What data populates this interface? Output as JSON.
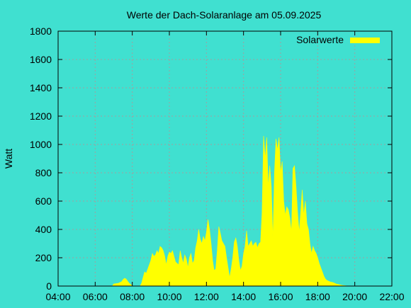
{
  "chart_data": {
    "type": "area",
    "title": "Werte der Dach-Solaranlage am 05.09.2025",
    "xlabel": "",
    "ylabel": "Watt",
    "xlim": [
      "04:00",
      "22:00"
    ],
    "ylim": [
      0,
      1800
    ],
    "x_ticks": [
      "04:00",
      "06:00",
      "08:00",
      "10:00",
      "12:00",
      "14:00",
      "16:00",
      "18:00",
      "20:00",
      "22:00"
    ],
    "y_ticks": [
      0,
      200,
      400,
      600,
      800,
      1000,
      1200,
      1400,
      1600,
      1800
    ],
    "grid": true,
    "legend_position": "top-right",
    "series": [
      {
        "name": "Solarwerte",
        "color": "#ffff00",
        "points": [
          [
            "06:55",
            0
          ],
          [
            "07:00",
            15
          ],
          [
            "07:15",
            20
          ],
          [
            "07:25",
            30
          ],
          [
            "07:30",
            45
          ],
          [
            "07:35",
            55
          ],
          [
            "07:40",
            50
          ],
          [
            "07:45",
            35
          ],
          [
            "07:50",
            20
          ],
          [
            "07:55",
            10
          ],
          [
            "08:00",
            3
          ],
          [
            "08:05",
            0
          ],
          [
            "08:25",
            0
          ],
          [
            "08:30",
            20
          ],
          [
            "08:35",
            60
          ],
          [
            "08:40",
            100
          ],
          [
            "08:45",
            90
          ],
          [
            "08:50",
            120
          ],
          [
            "09:00",
            180
          ],
          [
            "09:05",
            230
          ],
          [
            "09:10",
            210
          ],
          [
            "09:15",
            220
          ],
          [
            "09:20",
            250
          ],
          [
            "09:25",
            230
          ],
          [
            "09:30",
            280
          ],
          [
            "09:35",
            270
          ],
          [
            "09:40",
            250
          ],
          [
            "09:45",
            210
          ],
          [
            "09:50",
            150
          ],
          [
            "09:55",
            210
          ],
          [
            "10:00",
            240
          ],
          [
            "10:05",
            230
          ],
          [
            "10:10",
            250
          ],
          [
            "10:15",
            210
          ],
          [
            "10:20",
            170
          ],
          [
            "10:25",
            160
          ],
          [
            "10:30",
            150
          ],
          [
            "10:35",
            250
          ],
          [
            "10:40",
            200
          ],
          [
            "10:45",
            160
          ],
          [
            "10:50",
            220
          ],
          [
            "10:55",
            190
          ],
          [
            "11:00",
            130
          ],
          [
            "11:05",
            200
          ],
          [
            "11:10",
            230
          ],
          [
            "11:15",
            160
          ],
          [
            "11:20",
            180
          ],
          [
            "11:25",
            270
          ],
          [
            "11:30",
            320
          ],
          [
            "11:35",
            400
          ],
          [
            "11:40",
            330
          ],
          [
            "11:45",
            300
          ],
          [
            "11:50",
            350
          ],
          [
            "11:55",
            320
          ],
          [
            "12:00",
            380
          ],
          [
            "12:05",
            470
          ],
          [
            "12:10",
            400
          ],
          [
            "12:15",
            300
          ],
          [
            "12:20",
            180
          ],
          [
            "12:25",
            110
          ],
          [
            "12:30",
            120
          ],
          [
            "12:35",
            250
          ],
          [
            "12:40",
            420
          ],
          [
            "12:45",
            370
          ],
          [
            "12:50",
            320
          ],
          [
            "12:55",
            300
          ],
          [
            "13:00",
            280
          ],
          [
            "13:05",
            200
          ],
          [
            "13:10",
            130
          ],
          [
            "13:15",
            60
          ],
          [
            "13:20",
            120
          ],
          [
            "13:25",
            200
          ],
          [
            "13:30",
            310
          ],
          [
            "13:35",
            340
          ],
          [
            "13:40",
            280
          ],
          [
            "13:45",
            180
          ],
          [
            "13:50",
            110
          ],
          [
            "13:55",
            140
          ],
          [
            "14:00",
            230
          ],
          [
            "14:05",
            280
          ],
          [
            "14:10",
            390
          ],
          [
            "14:15",
            280
          ],
          [
            "14:20",
            300
          ],
          [
            "14:25",
            320
          ],
          [
            "14:30",
            280
          ],
          [
            "14:35",
            300
          ],
          [
            "14:40",
            310
          ],
          [
            "14:45",
            270
          ],
          [
            "14:50",
            300
          ],
          [
            "14:55",
            310
          ],
          [
            "15:00",
            520
          ],
          [
            "15:05",
            1060
          ],
          [
            "15:10",
            900
          ],
          [
            "15:15",
            1050
          ],
          [
            "15:20",
            700
          ],
          [
            "15:25",
            850
          ],
          [
            "15:30",
            700
          ],
          [
            "15:35",
            330
          ],
          [
            "15:40",
            800
          ],
          [
            "15:45",
            1040
          ],
          [
            "15:50",
            960
          ],
          [
            "15:55",
            1050
          ],
          [
            "16:00",
            800
          ],
          [
            "16:05",
            880
          ],
          [
            "16:10",
            600
          ],
          [
            "16:15",
            500
          ],
          [
            "16:20",
            560
          ],
          [
            "16:25",
            540
          ],
          [
            "16:30",
            480
          ],
          [
            "16:35",
            380
          ],
          [
            "16:40",
            830
          ],
          [
            "16:45",
            850
          ],
          [
            "16:50",
            700
          ],
          [
            "16:55",
            520
          ],
          [
            "17:00",
            380
          ],
          [
            "17:05",
            520
          ],
          [
            "17:10",
            680
          ],
          [
            "17:15",
            500
          ],
          [
            "17:20",
            600
          ],
          [
            "17:25",
            440
          ],
          [
            "17:30",
            400
          ],
          [
            "17:35",
            300
          ],
          [
            "17:40",
            230
          ],
          [
            "17:45",
            280
          ],
          [
            "17:50",
            250
          ],
          [
            "17:55",
            230
          ],
          [
            "18:00",
            200
          ],
          [
            "18:05",
            160
          ],
          [
            "18:10",
            130
          ],
          [
            "18:15",
            100
          ],
          [
            "18:20",
            70
          ],
          [
            "18:25",
            50
          ],
          [
            "18:30",
            40
          ],
          [
            "18:40",
            30
          ],
          [
            "18:50",
            25
          ],
          [
            "19:00",
            15
          ],
          [
            "19:10",
            10
          ],
          [
            "19:20",
            5
          ],
          [
            "19:30",
            2
          ],
          [
            "19:40",
            0
          ]
        ]
      }
    ]
  }
}
